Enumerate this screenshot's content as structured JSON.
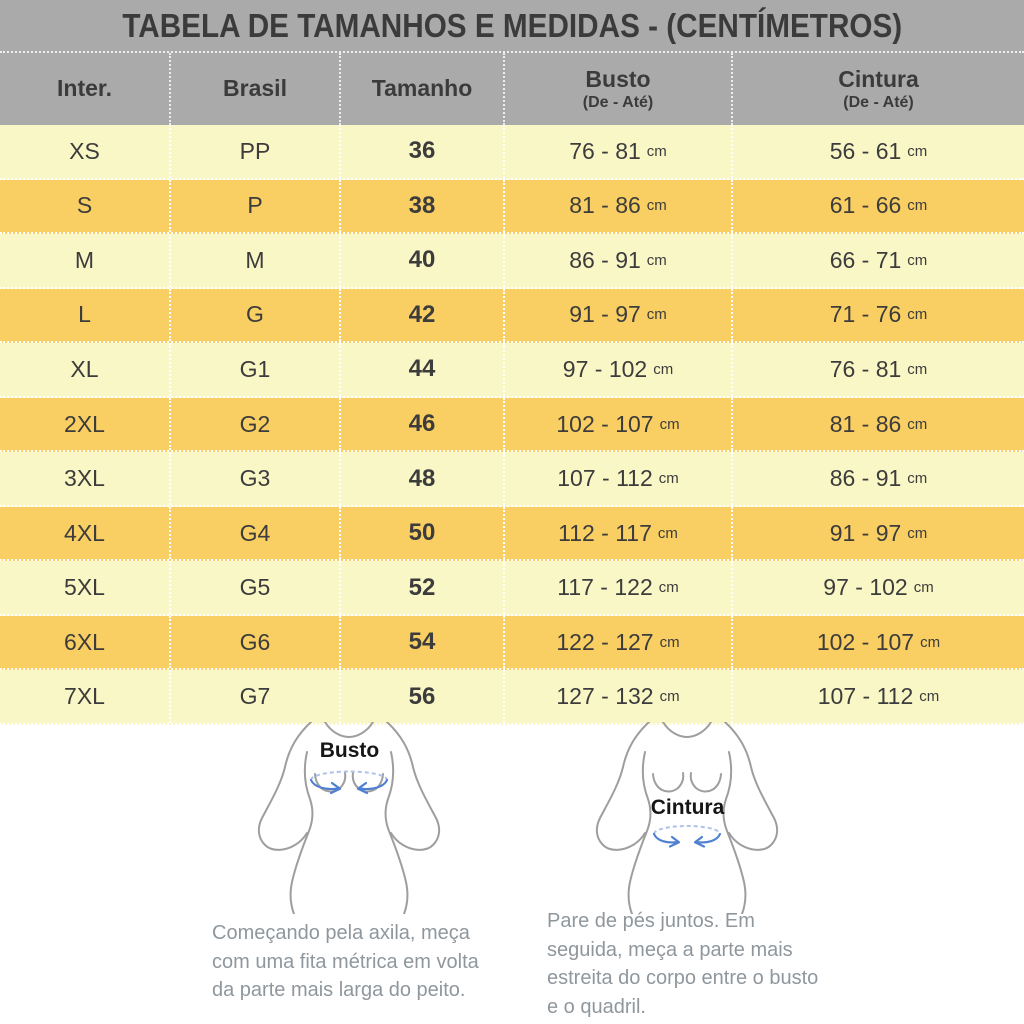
{
  "title": "TABELA DE TAMANHOS E MEDIDAS - (CENTÍMETROS)",
  "table": {
    "unit": "cm",
    "columns": [
      {
        "label": "Inter.",
        "sub": ""
      },
      {
        "label": "Brasil",
        "sub": ""
      },
      {
        "label": "Tamanho",
        "sub": ""
      },
      {
        "label": "Busto",
        "sub": "(De - Até)"
      },
      {
        "label": "Cintura",
        "sub": "(De - Até)"
      }
    ],
    "rows": [
      {
        "inter": "XS",
        "brasil": "PP",
        "tamanho": "36",
        "busto": "76 - 81",
        "cintura": "56 - 61"
      },
      {
        "inter": "S",
        "brasil": "P",
        "tamanho": "38",
        "busto": "81 - 86",
        "cintura": "61 - 66"
      },
      {
        "inter": "M",
        "brasil": "M",
        "tamanho": "40",
        "busto": "86 - 91",
        "cintura": "66 - 71"
      },
      {
        "inter": "L",
        "brasil": "G",
        "tamanho": "42",
        "busto": "91 - 97",
        "cintura": "71 - 76"
      },
      {
        "inter": "XL",
        "brasil": "G1",
        "tamanho": "44",
        "busto": "97 - 102",
        "cintura": "76 - 81"
      },
      {
        "inter": "2XL",
        "brasil": "G2",
        "tamanho": "46",
        "busto": "102 - 107",
        "cintura": "81 - 86"
      },
      {
        "inter": "3XL",
        "brasil": "G3",
        "tamanho": "48",
        "busto": "107 - 112",
        "cintura": "86 - 91"
      },
      {
        "inter": "4XL",
        "brasil": "G4",
        "tamanho": "50",
        "busto": "112 - 117",
        "cintura": "91 - 97"
      },
      {
        "inter": "5XL",
        "brasil": "G5",
        "tamanho": "52",
        "busto": "117 - 122",
        "cintura": "97 - 102"
      },
      {
        "inter": "6XL",
        "brasil": "G6",
        "tamanho": "54",
        "busto": "122 - 127",
        "cintura": "102 - 107"
      },
      {
        "inter": "7XL",
        "brasil": "G7",
        "tamanho": "56",
        "busto": "127 - 132",
        "cintura": "107 - 112"
      }
    ]
  },
  "diagrams": {
    "bust": {
      "label": "Busto",
      "instruction_lines": [
        "Começando pela axila, meça",
        "com uma fita métrica em volta",
        "da parte mais larga do peito."
      ]
    },
    "waist": {
      "label": "Cintura",
      "instruction_lines": [
        "Pare de pés juntos. Em",
        "seguida, meça a parte mais",
        "estreita do corpo entre o busto",
        "e o quadril."
      ]
    }
  },
  "colors": {
    "header_gray": "#AAAAAA",
    "row_cream": "#FAF7C6",
    "row_gold": "#F9CE62",
    "text_dark": "#3B3B3B",
    "instruction_gray": "#8F979D",
    "figure_outline": "#9E9E9E",
    "arrow_blue": "#4F80D1",
    "arrow_blue_dashed": "#AFC2EA"
  }
}
